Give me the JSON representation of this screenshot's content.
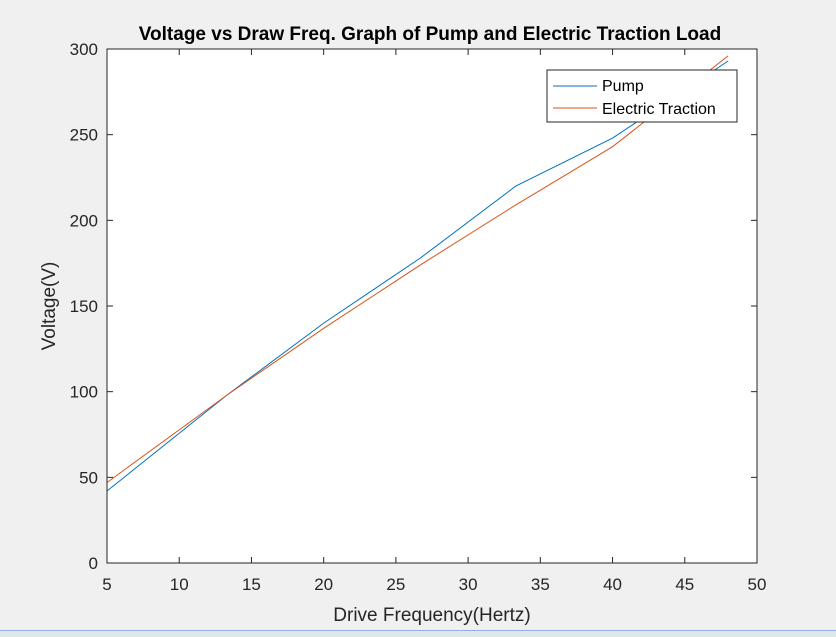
{
  "chart_data": {
    "type": "line",
    "title": "Voltage vs Draw Freq. Graph of Pump and Electric Traction Load",
    "xlabel": "Drive Frequency(Hertz)",
    "ylabel": "Voltage(V)",
    "xlim": [
      5,
      50
    ],
    "ylim": [
      0,
      300
    ],
    "xticks": [
      "5",
      "10",
      "15",
      "20",
      "25",
      "30",
      "35",
      "40",
      "45",
      "50"
    ],
    "yticks": [
      "0",
      "50",
      "100",
      "150",
      "200",
      "250",
      "300"
    ],
    "grid": false,
    "legend_position": "top-right",
    "series": [
      {
        "name": "Pump",
        "color": "#0072bd",
        "x": [
          5,
          13.3,
          20,
          26.7,
          33.3,
          40,
          48
        ],
        "y": [
          42,
          98,
          140,
          178,
          220,
          248,
          293
        ]
      },
      {
        "name": "Electric Traction",
        "color": "#d95319",
        "x": [
          5,
          13.3,
          20,
          26.7,
          33.3,
          40,
          48
        ],
        "y": [
          47,
          98,
          137,
          174,
          209,
          243,
          296
        ]
      }
    ]
  }
}
